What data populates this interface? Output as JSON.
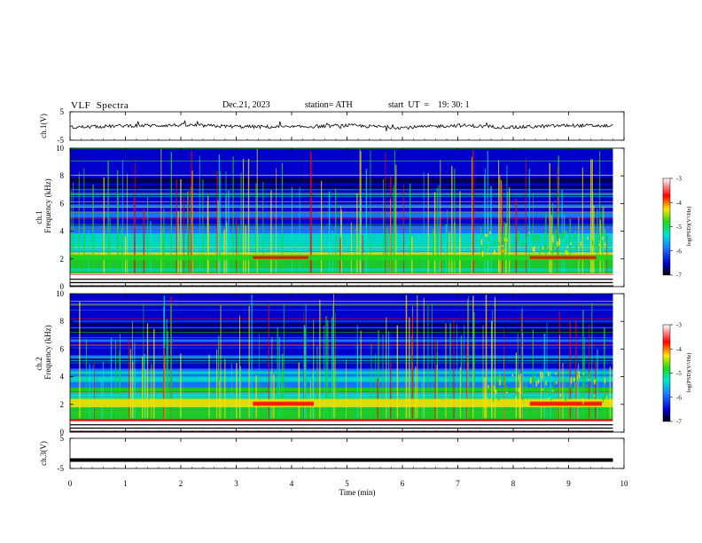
{
  "header": {
    "title": "VLF  Spectra",
    "date": "Dec.21, 2023",
    "station": "station= ATH",
    "start_ut": "start  UT  =    19: 30: 1"
  },
  "chart_data": [
    {
      "type": "line",
      "panel": "ch1-waveform",
      "ylabel": "ch.1(V)",
      "ylim": [
        -5,
        5
      ],
      "yticks": [
        "5",
        "-5"
      ],
      "x": [
        0,
        1,
        2,
        3,
        4,
        5,
        6,
        7,
        8,
        9,
        9.8
      ],
      "values": [
        -0.5,
        0.1,
        0.3,
        -0.2,
        -0.4,
        0.2,
        -0.6,
        0.2,
        -0.5,
        0.2,
        0.0
      ],
      "color": "#000000"
    },
    {
      "type": "heatmap",
      "panel": "ch1-spectrogram",
      "ylabel_line1": "ch.1",
      "ylabel_line2": "Frequency  (kHz)",
      "ylim": [
        0,
        10
      ],
      "yticks": [
        "0",
        "2",
        "4",
        "6",
        "8",
        "10"
      ],
      "xlim": [
        0,
        10
      ],
      "data_end_min": 9.8,
      "colorbar": {
        "label": "log(PSD)(V²/Hz)",
        "ticks": [
          "-3",
          "-4",
          "-5",
          "-6",
          "-7"
        ],
        "range": [
          -7,
          -3
        ]
      },
      "features": [
        {
          "name": "base band",
          "f_khz": [
            0,
            0.8
          ],
          "level": -3.5
        },
        {
          "name": "strong band",
          "f_khz": [
            1.9,
            2.3
          ],
          "level": -4.6
        },
        {
          "name": "enhanced emission",
          "t_min": [
            3.3,
            4.3
          ],
          "f_khz": [
            2.0,
            2.2
          ],
          "level": -3.8
        },
        {
          "name": "enhanced emission",
          "t_min": [
            8.3,
            9.5
          ],
          "f_khz": [
            2.0,
            2.2
          ],
          "level": -3.8
        },
        {
          "name": "hiss",
          "t_min": [
            7.4,
            9.7
          ],
          "f_khz": [
            2.5,
            4.2
          ],
          "level": -5.0
        }
      ]
    },
    {
      "type": "heatmap",
      "panel": "ch2-spectrogram",
      "ylabel_line1": "ch.2",
      "ylabel_line2": "Frequency  (kHz)",
      "ylim": [
        0,
        10
      ],
      "yticks": [
        "0",
        "2",
        "4",
        "6",
        "8",
        "10"
      ],
      "xlim": [
        0,
        10
      ],
      "data_end_min": 9.8,
      "colorbar": {
        "label": "log(PSD)(V²/Hz)",
        "ticks": [
          "-3",
          "-4",
          "-5",
          "-6",
          "-7"
        ],
        "range": [
          -7,
          -3
        ]
      },
      "features": [
        {
          "name": "base band",
          "f_khz": [
            0,
            0.8
          ],
          "level": -3.5
        },
        {
          "name": "strong band",
          "f_khz": [
            1.8,
            2.4
          ],
          "level": -4.2
        },
        {
          "name": "enhanced emission",
          "t_min": [
            3.3,
            4.4
          ],
          "f_khz": [
            1.9,
            2.2
          ],
          "level": -3.6
        },
        {
          "name": "enhanced emission",
          "t_min": [
            8.3,
            9.6
          ],
          "f_khz": [
            1.9,
            2.2
          ],
          "level": -3.6
        },
        {
          "name": "hiss",
          "t_min": [
            7.5,
            9.7
          ],
          "f_khz": [
            2.4,
            4.4
          ],
          "level": -5.0
        }
      ]
    },
    {
      "type": "line",
      "panel": "ch3-waveform",
      "ylabel": "ch.3(V)",
      "ylim": [
        -5,
        5
      ],
      "yticks": [
        "5",
        "-5"
      ],
      "x": [
        0,
        9.8
      ],
      "values": [
        -2.2,
        -2.2
      ],
      "color": "#000000"
    }
  ],
  "xaxis": {
    "label": "Time  (min)",
    "ticks": [
      "0",
      "1",
      "2",
      "3",
      "4",
      "5",
      "6",
      "7",
      "8",
      "9",
      "10"
    ],
    "range": [
      0,
      10
    ]
  },
  "colors": {
    "lowest": "#00004a",
    "low": "#0000cc",
    "midlow": "#1a7dff",
    "mid": "#00e6c8",
    "midhigh": "#1ed81e",
    "high": "#ffe000",
    "higher": "#ff0000",
    "highest": "#ffffff"
  }
}
